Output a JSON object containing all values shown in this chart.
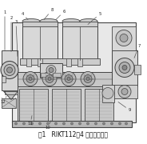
{
  "title": "图1   RIKT112－4 压缩机截面图",
  "bg_color": "#ffffff",
  "body_color": "#e0e0e0",
  "line_color": "#666666",
  "dark_color": "#444444",
  "mid_color": "#b8b8b8",
  "light_color": "#d4d4d4",
  "vlight_color": "#ececec",
  "title_fontsize": 5.5,
  "fig_width": 1.84,
  "fig_height": 1.8,
  "dpi": 100
}
